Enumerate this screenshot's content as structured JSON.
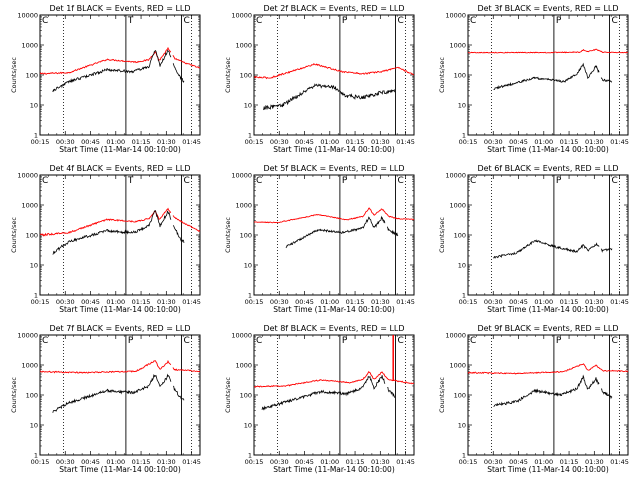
{
  "chart_data": [
    {
      "type": "line",
      "title": "Det 1f BLACK = Events, RED = LLD",
      "flags": [
        "C",
        "T",
        "C"
      ],
      "has_lld": true,
      "lld": [
        [
          0,
          110,
          0.06
        ],
        [
          0.18,
          120,
          0.05
        ],
        [
          0.42,
          330,
          0.05
        ],
        [
          0.6,
          270,
          0.05
        ],
        [
          0.68,
          320,
          0.05
        ],
        [
          0.72,
          600,
          0.06
        ],
        [
          0.745,
          300,
          0.05
        ],
        [
          0.8,
          760,
          0.07
        ],
        [
          0.84,
          360,
          0.05
        ],
        [
          0.9,
          260,
          0.05
        ],
        [
          1,
          170,
          0.05
        ]
      ],
      "events": [
        [
          0.08,
          30,
          0.1
        ],
        [
          0.18,
          60,
          0.1
        ],
        [
          0.42,
          150,
          0.1
        ],
        [
          0.58,
          130,
          0.1
        ],
        [
          0.68,
          190,
          0.1
        ],
        [
          0.72,
          700,
          0.12
        ],
        [
          0.75,
          200,
          0.1
        ],
        [
          0.8,
          680,
          0.12
        ],
        [
          0.84,
          180,
          0.1
        ],
        [
          0.88,
          80,
          0.1
        ],
        [
          0.9,
          60,
          0.1
        ]
      ],
      "ev_range": [
        0.08,
        0.9
      ],
      "ev_gaps": [
        [
          0.82,
          0.83
        ]
      ],
      "lld_gaps": [
        [
          0.82,
          0.83
        ]
      ],
      "spikes": []
    },
    {
      "type": "line",
      "title": "Det 2f BLACK = Events, RED = LLD",
      "flags": [
        "C",
        "P",
        "C"
      ],
      "has_lld": true,
      "lld": [
        [
          0,
          85,
          0.08
        ],
        [
          0.1,
          80,
          0.06
        ],
        [
          0.38,
          230,
          0.05
        ],
        [
          0.55,
          130,
          0.05
        ],
        [
          0.68,
          110,
          0.06
        ],
        [
          0.8,
          130,
          0.06
        ],
        [
          0.9,
          180,
          0.05
        ],
        [
          1,
          100,
          0.05
        ]
      ],
      "events": [
        [
          0.06,
          8,
          0.15
        ],
        [
          0.18,
          10,
          0.15
        ],
        [
          0.38,
          45,
          0.12
        ],
        [
          0.5,
          40,
          0.12
        ],
        [
          0.58,
          20,
          0.15
        ],
        [
          0.68,
          18,
          0.15
        ],
        [
          0.78,
          25,
          0.15
        ],
        [
          0.88,
          30,
          0.15
        ]
      ],
      "ev_range": [
        0.06,
        0.88
      ],
      "ev_gaps": [],
      "lld_gaps": [],
      "spikes": []
    },
    {
      "type": "line",
      "title": "Det 3f BLACK = Events, RED = LLD",
      "flags": [
        "C",
        "P",
        "C"
      ],
      "has_lld": true,
      "lld": [
        [
          0,
          560,
          0.03
        ],
        [
          0.5,
          560,
          0.03
        ],
        [
          0.7,
          580,
          0.03
        ],
        [
          0.72,
          700,
          0.04
        ],
        [
          0.75,
          600,
          0.03
        ],
        [
          0.8,
          720,
          0.04
        ],
        [
          0.84,
          580,
          0.03
        ],
        [
          1,
          560,
          0.03
        ]
      ],
      "events": [
        [
          0.16,
          35,
          0.08
        ],
        [
          0.42,
          80,
          0.08
        ],
        [
          0.6,
          60,
          0.08
        ],
        [
          0.68,
          110,
          0.08
        ],
        [
          0.72,
          220,
          0.1
        ],
        [
          0.75,
          80,
          0.08
        ],
        [
          0.8,
          200,
          0.1
        ],
        [
          0.84,
          70,
          0.08
        ],
        [
          0.9,
          60,
          0.08
        ]
      ],
      "ev_range": [
        0.16,
        0.9
      ],
      "ev_gaps": [
        [
          0.82,
          0.83
        ]
      ],
      "lld_gaps": [],
      "spikes": []
    },
    {
      "type": "line",
      "title": "Det 4f BLACK = Events, RED = LLD",
      "flags": [
        "C",
        "T",
        "C"
      ],
      "has_lld": true,
      "lld": [
        [
          0,
          100,
          0.08
        ],
        [
          0.18,
          120,
          0.06
        ],
        [
          0.42,
          330,
          0.05
        ],
        [
          0.6,
          280,
          0.05
        ],
        [
          0.68,
          350,
          0.05
        ],
        [
          0.72,
          650,
          0.06
        ],
        [
          0.745,
          320,
          0.05
        ],
        [
          0.8,
          780,
          0.07
        ],
        [
          0.84,
          380,
          0.05
        ],
        [
          0.9,
          250,
          0.05
        ],
        [
          1,
          130,
          0.05
        ]
      ],
      "events": [
        [
          0.08,
          25,
          0.12
        ],
        [
          0.18,
          60,
          0.1
        ],
        [
          0.42,
          140,
          0.1
        ],
        [
          0.58,
          120,
          0.1
        ],
        [
          0.68,
          200,
          0.1
        ],
        [
          0.72,
          650,
          0.12
        ],
        [
          0.75,
          200,
          0.1
        ],
        [
          0.8,
          620,
          0.12
        ],
        [
          0.84,
          180,
          0.1
        ],
        [
          0.88,
          70,
          0.1
        ],
        [
          0.9,
          60,
          0.1
        ]
      ],
      "ev_range": [
        0.08,
        0.9
      ],
      "ev_gaps": [
        [
          0.82,
          0.83
        ]
      ],
      "lld_gaps": [
        [
          0.82,
          0.83
        ]
      ],
      "spikes": []
    },
    {
      "type": "line",
      "title": "Det 5f BLACK = Events, RED = LLD",
      "flags": [
        "C",
        "P",
        "C"
      ],
      "has_lld": true,
      "lld": [
        [
          0,
          270,
          0.03
        ],
        [
          0.15,
          260,
          0.03
        ],
        [
          0.4,
          480,
          0.03
        ],
        [
          0.58,
          320,
          0.03
        ],
        [
          0.68,
          420,
          0.04
        ],
        [
          0.72,
          800,
          0.05
        ],
        [
          0.75,
          450,
          0.04
        ],
        [
          0.8,
          750,
          0.05
        ],
        [
          0.84,
          420,
          0.04
        ],
        [
          0.9,
          350,
          0.03
        ],
        [
          1,
          330,
          0.03
        ]
      ],
      "events": [
        [
          0.2,
          40,
          0.08
        ],
        [
          0.4,
          150,
          0.08
        ],
        [
          0.55,
          120,
          0.08
        ],
        [
          0.68,
          170,
          0.08
        ],
        [
          0.72,
          400,
          0.1
        ],
        [
          0.75,
          170,
          0.08
        ],
        [
          0.8,
          380,
          0.1
        ],
        [
          0.84,
          150,
          0.08
        ],
        [
          0.9,
          100,
          0.08
        ]
      ],
      "ev_range": [
        0.2,
        0.9
      ],
      "ev_gaps": [
        [
          0.82,
          0.83
        ]
      ],
      "lld_gaps": [],
      "spikes": []
    },
    {
      "type": "line",
      "title": "Det 6f BLACK = Events, RED = LLD",
      "flags": [
        "C",
        "P",
        "C"
      ],
      "has_lld": false,
      "lld": [],
      "events": [
        [
          0.16,
          18,
          0.08
        ],
        [
          0.3,
          25,
          0.08
        ],
        [
          0.42,
          65,
          0.08
        ],
        [
          0.55,
          40,
          0.08
        ],
        [
          0.68,
          28,
          0.08
        ],
        [
          0.72,
          45,
          0.1
        ],
        [
          0.75,
          30,
          0.08
        ],
        [
          0.8,
          50,
          0.1
        ],
        [
          0.84,
          30,
          0.08
        ],
        [
          0.9,
          35,
          0.08
        ]
      ],
      "ev_range": [
        0.16,
        0.9
      ],
      "ev_gaps": [
        [
          0.82,
          0.83
        ]
      ],
      "lld_gaps": [],
      "spikes": []
    },
    {
      "type": "line",
      "title": "Det 7f BLACK = Events, RED = LLD",
      "flags": [
        "C",
        "P",
        "C"
      ],
      "has_lld": true,
      "lld": [
        [
          0,
          600,
          0.06
        ],
        [
          0.3,
          560,
          0.05
        ],
        [
          0.6,
          620,
          0.05
        ],
        [
          0.72,
          1400,
          0.06
        ],
        [
          0.75,
          700,
          0.05
        ],
        [
          0.8,
          1300,
          0.06
        ],
        [
          0.84,
          700,
          0.05
        ],
        [
          1,
          620,
          0.05
        ]
      ],
      "events": [
        [
          0.08,
          28,
          0.1
        ],
        [
          0.18,
          55,
          0.1
        ],
        [
          0.42,
          140,
          0.1
        ],
        [
          0.58,
          120,
          0.1
        ],
        [
          0.68,
          200,
          0.1
        ],
        [
          0.72,
          500,
          0.12
        ],
        [
          0.75,
          180,
          0.1
        ],
        [
          0.8,
          450,
          0.12
        ],
        [
          0.84,
          160,
          0.1
        ],
        [
          0.88,
          80,
          0.1
        ],
        [
          0.9,
          70,
          0.1
        ]
      ],
      "ev_range": [
        0.08,
        0.9
      ],
      "ev_gaps": [
        [
          0.82,
          0.83
        ]
      ],
      "lld_gaps": [
        [
          0.82,
          0.83
        ]
      ],
      "spikes": []
    },
    {
      "type": "line",
      "title": "Det 8f BLACK = Events, RED = LLD",
      "flags": [
        "C",
        "P",
        "C"
      ],
      "has_lld": true,
      "lld": [
        [
          0,
          190,
          0.05
        ],
        [
          0.2,
          200,
          0.05
        ],
        [
          0.42,
          320,
          0.04
        ],
        [
          0.6,
          260,
          0.04
        ],
        [
          0.68,
          330,
          0.05
        ],
        [
          0.72,
          600,
          0.06
        ],
        [
          0.75,
          330,
          0.05
        ],
        [
          0.8,
          580,
          0.06
        ],
        [
          0.84,
          320,
          0.05
        ],
        [
          0.88,
          300,
          0.05
        ],
        [
          1,
          240,
          0.04
        ]
      ],
      "events": [
        [
          0.05,
          35,
          0.1
        ],
        [
          0.18,
          55,
          0.1
        ],
        [
          0.42,
          130,
          0.1
        ],
        [
          0.58,
          110,
          0.1
        ],
        [
          0.68,
          180,
          0.1
        ],
        [
          0.72,
          450,
          0.12
        ],
        [
          0.75,
          170,
          0.1
        ],
        [
          0.8,
          420,
          0.12
        ],
        [
          0.84,
          150,
          0.1
        ],
        [
          0.88,
          90,
          0.1
        ]
      ],
      "ev_range": [
        0.05,
        0.88
      ],
      "ev_gaps": [
        [
          0.82,
          0.83
        ]
      ],
      "lld_gaps": [],
      "spikes": [
        [
          0.87,
          300,
          10000
        ]
      ]
    },
    {
      "type": "line",
      "title": "Det 9f BLACK = Events, RED = LLD",
      "flags": [
        "C",
        "P",
        "C"
      ],
      "has_lld": true,
      "lld": [
        [
          0,
          560,
          0.05
        ],
        [
          0.3,
          520,
          0.04
        ],
        [
          0.6,
          600,
          0.04
        ],
        [
          0.72,
          1100,
          0.05
        ],
        [
          0.75,
          650,
          0.04
        ],
        [
          0.8,
          1000,
          0.05
        ],
        [
          0.84,
          650,
          0.04
        ],
        [
          1,
          620,
          0.04
        ]
      ],
      "events": [
        [
          0.16,
          45,
          0.1
        ],
        [
          0.3,
          60,
          0.1
        ],
        [
          0.42,
          140,
          0.1
        ],
        [
          0.58,
          100,
          0.1
        ],
        [
          0.68,
          160,
          0.1
        ],
        [
          0.72,
          400,
          0.12
        ],
        [
          0.75,
          150,
          0.1
        ],
        [
          0.8,
          350,
          0.12
        ],
        [
          0.84,
          130,
          0.1
        ],
        [
          0.9,
          80,
          0.1
        ]
      ],
      "ev_range": [
        0.16,
        0.9
      ],
      "ev_gaps": [
        [
          0.82,
          0.83
        ]
      ],
      "lld_gaps": [],
      "spikes": []
    }
  ],
  "axis": {
    "x_tick_labels": [
      "00:15",
      "00:30",
      "00:45",
      "01:00",
      "01:15",
      "01:30",
      "01:45"
    ],
    "y_tick_labels": [
      "1",
      "10",
      "100",
      "1000",
      "10000"
    ],
    "ylim": [
      1,
      10000
    ],
    "xlabel": "Start Time (11-Mar-14 00:10:00)",
    "ylabel": "Counts/sec",
    "y_scale": "log",
    "x_minutes": [
      5,
      100
    ],
    "tick_minutes": [
      5,
      20,
      35,
      50,
      65,
      80,
      95
    ],
    "dotted_minutes": [
      19,
      95
    ],
    "solid_minutes": [
      56,
      89
    ]
  },
  "colors": {
    "lld": "#ff0000",
    "events": "#000000",
    "axes": "#000000"
  }
}
